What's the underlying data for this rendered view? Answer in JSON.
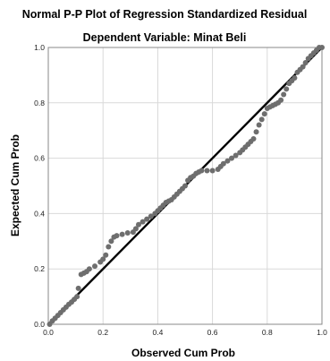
{
  "chart_data": {
    "type": "scatter",
    "title": "Normal P-P Plot of Regression Standardized Residual",
    "subtitle": "Dependent Variable: Minat Beli",
    "xlabel": "Observed Cum Prob",
    "ylabel": "Expected Cum Prob",
    "xlim": [
      0,
      1
    ],
    "ylim": [
      0,
      1
    ],
    "xticks": [
      "0.0",
      "0.2",
      "0.4",
      "0.6",
      "0.8",
      "1.0"
    ],
    "yticks": [
      "0.0",
      "0.2",
      "0.4",
      "0.6",
      "0.8",
      "1.0"
    ],
    "tick_values": [
      0,
      0.2,
      0.4,
      0.6,
      0.8,
      1.0
    ],
    "grid": true,
    "reference_line": {
      "from": [
        0,
        0
      ],
      "to": [
        1,
        1
      ]
    },
    "colors": {
      "points": "#6e6e6e",
      "line": "#000000",
      "grid": "#d9d9d9",
      "frame": "#888888"
    },
    "points": [
      [
        0.005,
        0.0
      ],
      [
        0.015,
        0.012
      ],
      [
        0.025,
        0.022
      ],
      [
        0.035,
        0.032
      ],
      [
        0.045,
        0.042
      ],
      [
        0.055,
        0.052
      ],
      [
        0.065,
        0.062
      ],
      [
        0.075,
        0.072
      ],
      [
        0.085,
        0.08
      ],
      [
        0.095,
        0.09
      ],
      [
        0.105,
        0.1
      ],
      [
        0.11,
        0.13
      ],
      [
        0.12,
        0.18
      ],
      [
        0.13,
        0.185
      ],
      [
        0.14,
        0.19
      ],
      [
        0.15,
        0.2
      ],
      [
        0.17,
        0.21
      ],
      [
        0.19,
        0.225
      ],
      [
        0.2,
        0.235
      ],
      [
        0.21,
        0.25
      ],
      [
        0.22,
        0.28
      ],
      [
        0.23,
        0.3
      ],
      [
        0.24,
        0.315
      ],
      [
        0.25,
        0.32
      ],
      [
        0.27,
        0.325
      ],
      [
        0.29,
        0.33
      ],
      [
        0.31,
        0.333
      ],
      [
        0.32,
        0.345
      ],
      [
        0.33,
        0.36
      ],
      [
        0.345,
        0.37
      ],
      [
        0.36,
        0.38
      ],
      [
        0.375,
        0.39
      ],
      [
        0.39,
        0.4
      ],
      [
        0.4,
        0.41
      ],
      [
        0.41,
        0.42
      ],
      [
        0.42,
        0.43
      ],
      [
        0.43,
        0.44
      ],
      [
        0.44,
        0.445
      ],
      [
        0.45,
        0.45
      ],
      [
        0.46,
        0.46
      ],
      [
        0.47,
        0.47
      ],
      [
        0.48,
        0.48
      ],
      [
        0.49,
        0.49
      ],
      [
        0.5,
        0.5
      ],
      [
        0.51,
        0.52
      ],
      [
        0.52,
        0.53
      ],
      [
        0.53,
        0.535
      ],
      [
        0.54,
        0.545
      ],
      [
        0.55,
        0.55
      ],
      [
        0.56,
        0.555
      ],
      [
        0.58,
        0.555
      ],
      [
        0.6,
        0.555
      ],
      [
        0.62,
        0.56
      ],
      [
        0.63,
        0.57
      ],
      [
        0.64,
        0.58
      ],
      [
        0.655,
        0.59
      ],
      [
        0.67,
        0.6
      ],
      [
        0.685,
        0.61
      ],
      [
        0.7,
        0.62
      ],
      [
        0.71,
        0.63
      ],
      [
        0.72,
        0.64
      ],
      [
        0.73,
        0.65
      ],
      [
        0.74,
        0.66
      ],
      [
        0.75,
        0.67
      ],
      [
        0.76,
        0.695
      ],
      [
        0.77,
        0.72
      ],
      [
        0.78,
        0.74
      ],
      [
        0.79,
        0.76
      ],
      [
        0.8,
        0.78
      ],
      [
        0.81,
        0.785
      ],
      [
        0.82,
        0.79
      ],
      [
        0.83,
        0.795
      ],
      [
        0.84,
        0.8
      ],
      [
        0.85,
        0.81
      ],
      [
        0.86,
        0.83
      ],
      [
        0.87,
        0.85
      ],
      [
        0.88,
        0.87
      ],
      [
        0.89,
        0.88
      ],
      [
        0.9,
        0.89
      ],
      [
        0.91,
        0.91
      ],
      [
        0.92,
        0.92
      ],
      [
        0.93,
        0.93
      ],
      [
        0.94,
        0.945
      ],
      [
        0.95,
        0.96
      ],
      [
        0.96,
        0.97
      ],
      [
        0.97,
        0.98
      ],
      [
        0.98,
        0.99
      ],
      [
        0.99,
        1.0
      ],
      [
        1.0,
        1.0
      ]
    ]
  }
}
